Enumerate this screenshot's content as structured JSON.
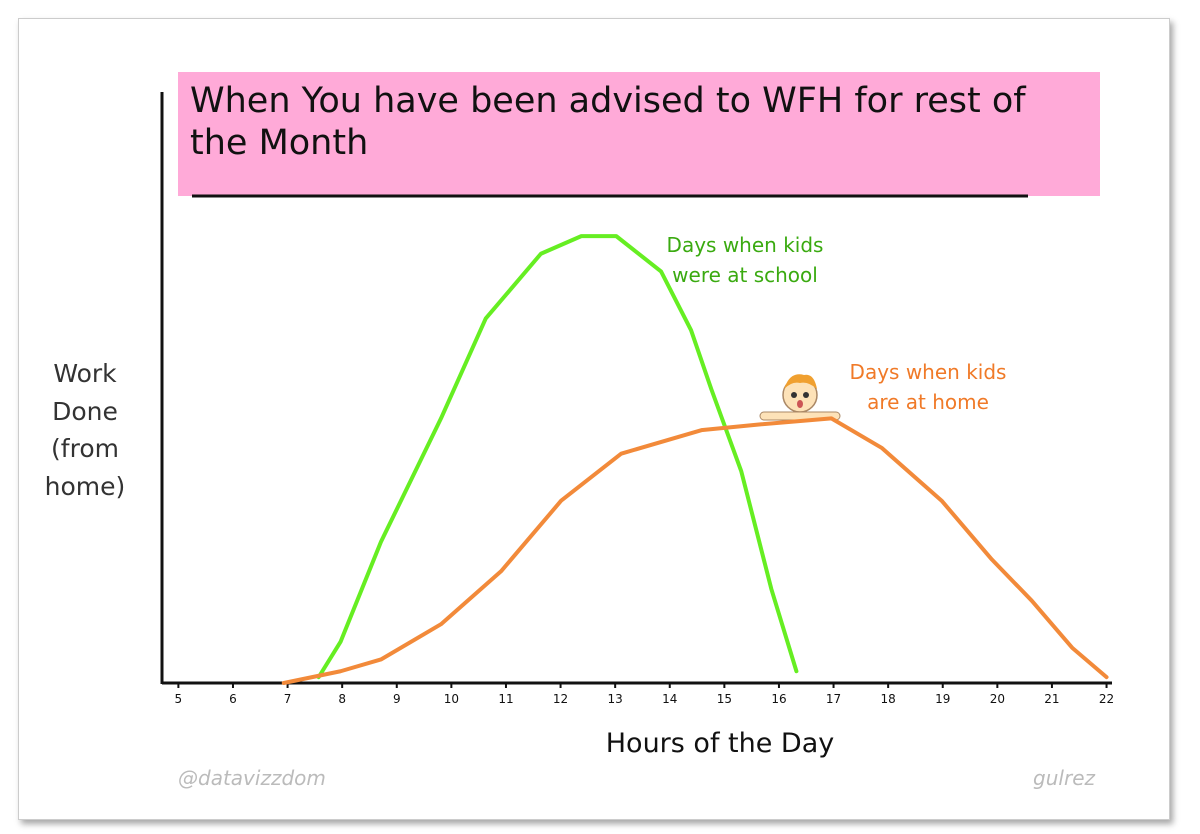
{
  "chart_data": {
    "type": "line",
    "title": "When You have been advised to WFH for rest of the Month",
    "xlabel": "Hours of the Day",
    "ylabel": "Work Done (from home)",
    "credits": [
      "@datavizzdom",
      "gulrez"
    ],
    "xlim": [
      4.7,
      22.1
    ],
    "xticks": [
      5,
      6,
      7,
      8,
      9,
      10,
      11,
      12,
      13,
      14,
      15,
      16,
      17,
      18,
      19,
      20,
      21,
      22
    ],
    "ylim": [
      0,
      100
    ],
    "series": [
      {
        "name": "Days when kids were at school",
        "color": "#66ee22",
        "x": [
          7.57,
          7.97,
          8.71,
          9.81,
          10.63,
          11.64,
          12.38,
          13.02,
          13.84,
          14.39,
          14.76,
          15.31,
          15.86,
          16.32
        ],
        "values": [
          1,
          7,
          24,
          45,
          62,
          73,
          76,
          76,
          70,
          60,
          50,
          36,
          16,
          2
        ]
      },
      {
        "name": "Days when kids are at home",
        "color": "#f28a3a",
        "x": [
          6.93,
          7.97,
          8.71,
          9.81,
          10.91,
          12.01,
          13.11,
          14.58,
          15.68,
          16.96,
          17.88,
          18.98,
          19.9,
          20.63,
          21.37,
          22.0
        ],
        "values": [
          0,
          2,
          4,
          10,
          19,
          31,
          39,
          43,
          44,
          45,
          40,
          31,
          21,
          14,
          6,
          1
        ]
      }
    ]
  }
}
